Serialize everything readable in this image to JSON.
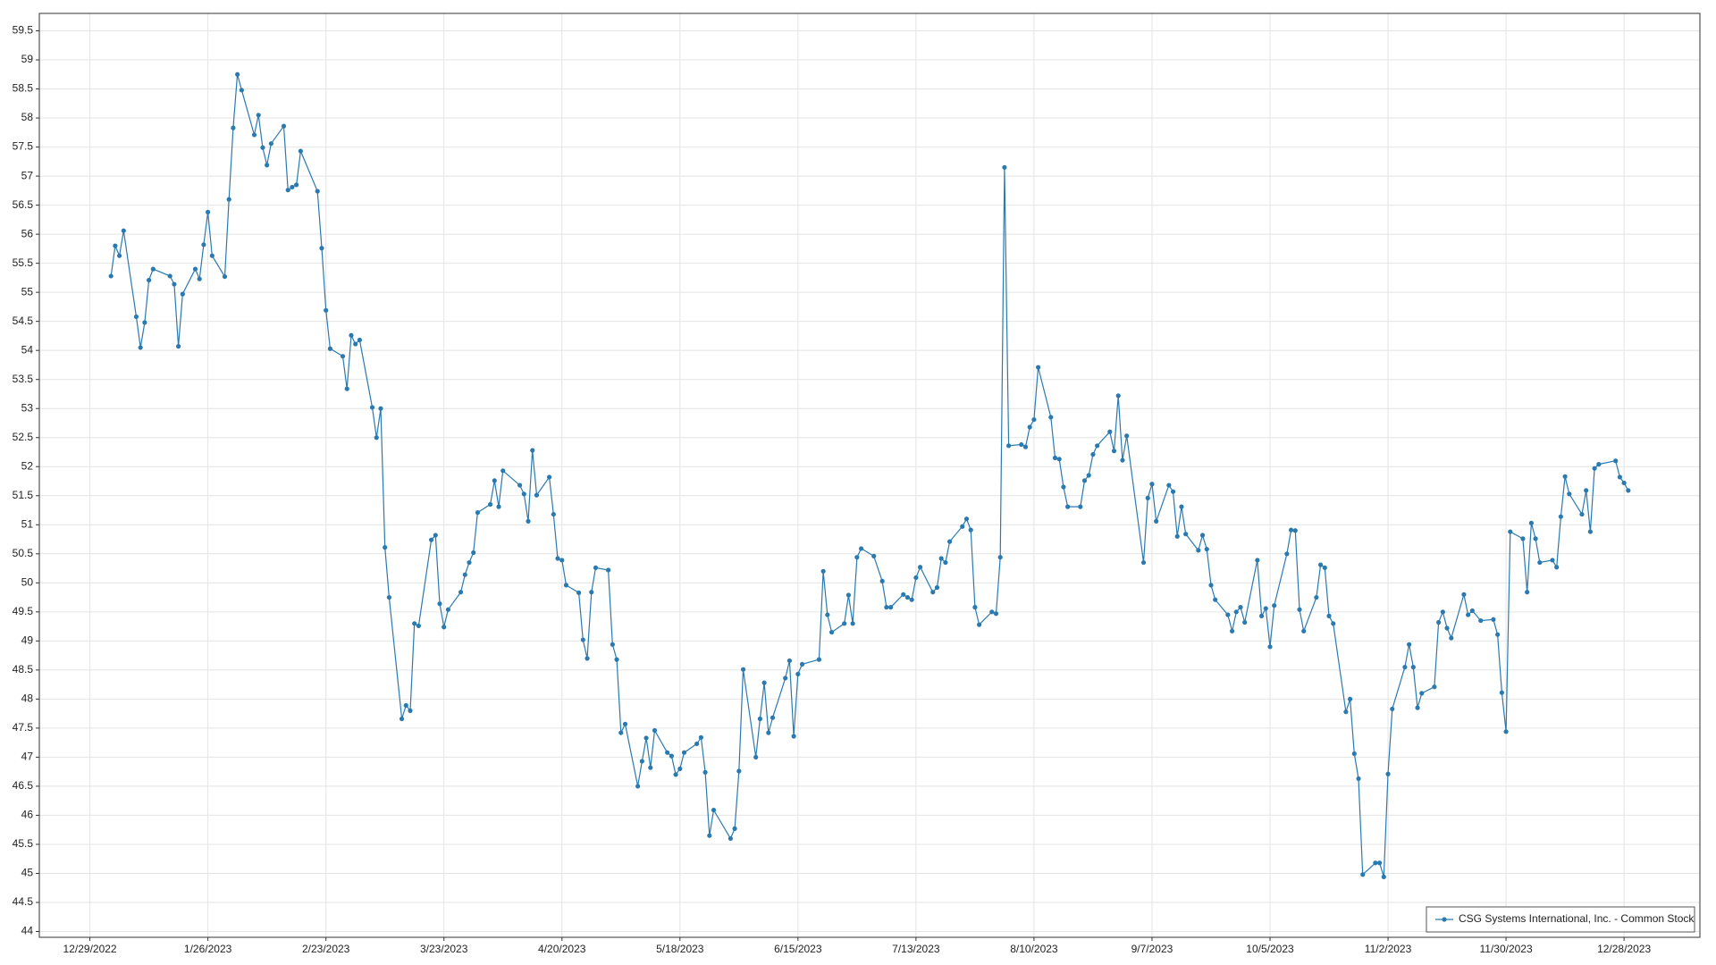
{
  "chart_data": {
    "type": "line",
    "x": [
      "1/3/2023",
      "1/4/2023",
      "1/5/2023",
      "1/6/2023",
      "1/9/2023",
      "1/10/2023",
      "1/11/2023",
      "1/12/2023",
      "1/13/2023",
      "1/17/2023",
      "1/18/2023",
      "1/19/2023",
      "1/20/2023",
      "1/23/2023",
      "1/24/2023",
      "1/25/2023",
      "1/26/2023",
      "1/27/2023",
      "1/30/2023",
      "1/31/2023",
      "2/1/2023",
      "2/2/2023",
      "2/3/2023",
      "2/6/2023",
      "2/7/2023",
      "2/8/2023",
      "2/9/2023",
      "2/10/2023",
      "2/13/2023",
      "2/14/2023",
      "2/15/2023",
      "2/16/2023",
      "2/17/2023",
      "2/21/2023",
      "2/22/2023",
      "2/23/2023",
      "2/24/2023",
      "2/27/2023",
      "2/28/2023",
      "3/1/2023",
      "3/2/2023",
      "3/3/2023",
      "3/6/2023",
      "3/7/2023",
      "3/8/2023",
      "3/9/2023",
      "3/10/2023",
      "3/13/2023",
      "3/14/2023",
      "3/15/2023",
      "3/16/2023",
      "3/17/2023",
      "3/20/2023",
      "3/21/2023",
      "3/22/2023",
      "3/23/2023",
      "3/24/2023",
      "3/27/2023",
      "3/28/2023",
      "3/29/2023",
      "3/30/2023",
      "3/31/2023",
      "4/3/2023",
      "4/4/2023",
      "4/5/2023",
      "4/6/2023",
      "4/10/2023",
      "4/11/2023",
      "4/12/2023",
      "4/13/2023",
      "4/14/2023",
      "4/17/2023",
      "4/18/2023",
      "4/19/2023",
      "4/20/2023",
      "4/21/2023",
      "4/24/2023",
      "4/25/2023",
      "4/26/2023",
      "4/27/2023",
      "4/28/2023",
      "5/1/2023",
      "5/2/2023",
      "5/3/2023",
      "5/4/2023",
      "5/5/2023",
      "5/8/2023",
      "5/9/2023",
      "5/10/2023",
      "5/11/2023",
      "5/12/2023",
      "5/15/2023",
      "5/16/2023",
      "5/17/2023",
      "5/18/2023",
      "5/19/2023",
      "5/22/2023",
      "5/23/2023",
      "5/24/2023",
      "5/25/2023",
      "5/26/2023",
      "5/30/2023",
      "5/31/2023",
      "6/1/2023",
      "6/2/2023",
      "6/5/2023",
      "6/6/2023",
      "6/7/2023",
      "6/8/2023",
      "6/9/2023",
      "6/12/2023",
      "6/13/2023",
      "6/14/2023",
      "6/15/2023",
      "6/16/2023",
      "6/20/2023",
      "6/21/2023",
      "6/22/2023",
      "6/23/2023",
      "6/26/2023",
      "6/27/2023",
      "6/28/2023",
      "6/29/2023",
      "6/30/2023",
      "7/3/2023",
      "7/5/2023",
      "7/6/2023",
      "7/7/2023",
      "7/10/2023",
      "7/11/2023",
      "7/12/2023",
      "7/13/2023",
      "7/14/2023",
      "7/17/2023",
      "7/18/2023",
      "7/19/2023",
      "7/20/2023",
      "7/21/2023",
      "7/24/2023",
      "7/25/2023",
      "7/26/2023",
      "7/27/2023",
      "7/28/2023",
      "7/31/2023",
      "8/1/2023",
      "8/2/2023",
      "8/3/2023",
      "8/4/2023",
      "8/7/2023",
      "8/8/2023",
      "8/9/2023",
      "8/10/2023",
      "8/11/2023",
      "8/14/2023",
      "8/15/2023",
      "8/16/2023",
      "8/17/2023",
      "8/18/2023",
      "8/21/2023",
      "8/22/2023",
      "8/23/2023",
      "8/24/2023",
      "8/25/2023",
      "8/28/2023",
      "8/29/2023",
      "8/30/2023",
      "8/31/2023",
      "9/1/2023",
      "9/5/2023",
      "9/6/2023",
      "9/7/2023",
      "9/8/2023",
      "9/11/2023",
      "9/12/2023",
      "9/13/2023",
      "9/14/2023",
      "9/15/2023",
      "9/18/2023",
      "9/19/2023",
      "9/20/2023",
      "9/21/2023",
      "9/22/2023",
      "9/25/2023",
      "9/26/2023",
      "9/27/2023",
      "9/28/2023",
      "9/29/2023",
      "10/2/2023",
      "10/3/2023",
      "10/4/2023",
      "10/5/2023",
      "10/6/2023",
      "10/9/2023",
      "10/10/2023",
      "10/11/2023",
      "10/12/2023",
      "10/13/2023",
      "10/16/2023",
      "10/17/2023",
      "10/18/2023",
      "10/19/2023",
      "10/20/2023",
      "10/23/2023",
      "10/24/2023",
      "10/25/2023",
      "10/26/2023",
      "10/27/2023",
      "10/30/2023",
      "10/31/2023",
      "11/1/2023",
      "11/2/2023",
      "11/3/2023",
      "11/6/2023",
      "11/7/2023",
      "11/8/2023",
      "11/9/2023",
      "11/10/2023",
      "11/13/2023",
      "11/14/2023",
      "11/15/2023",
      "11/16/2023",
      "11/17/2023",
      "11/20/2023",
      "11/21/2023",
      "11/22/2023",
      "11/24/2023",
      "11/27/2023",
      "11/28/2023",
      "11/29/2023",
      "11/30/2023",
      "12/1/2023",
      "12/4/2023",
      "12/5/2023",
      "12/6/2023",
      "12/7/2023",
      "12/8/2023",
      "12/11/2023",
      "12/12/2023",
      "12/13/2023",
      "12/14/2023",
      "12/15/2023",
      "12/18/2023",
      "12/19/2023",
      "12/20/2023",
      "12/21/2023",
      "12/22/2023",
      "12/26/2023",
      "12/27/2023",
      "12/28/2023",
      "12/29/2023"
    ],
    "series": [
      {
        "name": "CSG Systems International, Inc. - Common Stock",
        "color": "#2a7ab0",
        "values": [
          55.28,
          55.8,
          55.63,
          56.06,
          54.58,
          54.05,
          54.48,
          55.21,
          55.4,
          55.28,
          55.14,
          54.07,
          54.97,
          55.4,
          55.23,
          55.82,
          56.38,
          55.63,
          55.27,
          56.6,
          57.83,
          58.75,
          58.48,
          57.71,
          58.05,
          57.49,
          57.19,
          57.56,
          57.86,
          56.76,
          56.81,
          56.85,
          57.43,
          56.74,
          55.76,
          54.69,
          54.03,
          53.9,
          53.34,
          54.26,
          54.11,
          54.18,
          53.02,
          52.5,
          53.0,
          50.61,
          49.75,
          47.66,
          47.89,
          47.8,
          49.3,
          49.26,
          50.74,
          50.82,
          49.64,
          49.24,
          49.54,
          49.84,
          50.14,
          50.35,
          50.52,
          51.21,
          51.35,
          51.76,
          51.31,
          51.93,
          51.68,
          51.53,
          51.06,
          52.28,
          51.51,
          51.82,
          51.18,
          50.42,
          50.39,
          49.96,
          49.83,
          49.02,
          48.7,
          49.84,
          50.26,
          50.22,
          48.94,
          48.68,
          47.42,
          47.57,
          46.5,
          46.93,
          47.33,
          46.82,
          47.46,
          47.08,
          47.02,
          46.7,
          46.8,
          47.08,
          47.23,
          47.34,
          46.74,
          45.65,
          46.09,
          45.6,
          45.77,
          46.76,
          48.51,
          47.0,
          47.66,
          48.28,
          47.42,
          47.68,
          48.36,
          48.66,
          47.36,
          48.43,
          48.6,
          48.68,
          50.2,
          49.45,
          49.15,
          49.3,
          49.79,
          49.3,
          50.44,
          50.59,
          50.46,
          50.03,
          49.58,
          49.58,
          49.8,
          49.75,
          49.71,
          50.09,
          50.27,
          49.84,
          49.92,
          50.42,
          50.35,
          50.71,
          50.97,
          51.1,
          50.91,
          49.58,
          49.28,
          49.5,
          49.47,
          50.44,
          57.15,
          52.36,
          52.38,
          52.34,
          52.68,
          52.81,
          53.71,
          52.85,
          52.15,
          52.13,
          51.65,
          51.31,
          51.31,
          51.76,
          51.85,
          52.21,
          52.36,
          52.6,
          52.27,
          53.22,
          52.11,
          52.53,
          50.35,
          51.46,
          51.7,
          51.06,
          51.68,
          51.57,
          50.8,
          51.31,
          50.84,
          50.56,
          50.82,
          50.58,
          49.96,
          49.71,
          49.45,
          49.17,
          49.5,
          49.58,
          49.32,
          50.39,
          49.43,
          49.56,
          48.9,
          49.61,
          50.5,
          50.91,
          50.9,
          49.54,
          49.17,
          49.75,
          50.31,
          50.26,
          49.43,
          49.3,
          47.78,
          48.0,
          47.06,
          46.63,
          44.98,
          45.18,
          45.18,
          44.94,
          46.71,
          47.83,
          48.55,
          48.94,
          48.55,
          47.85,
          48.1,
          48.21,
          49.32,
          49.5,
          49.22,
          49.05,
          49.8,
          49.45,
          49.52,
          49.35,
          49.37,
          49.11,
          48.11,
          47.44,
          50.88,
          50.76,
          49.84,
          51.03,
          50.76,
          50.35,
          50.39,
          50.27,
          51.14,
          51.83,
          51.53,
          51.18,
          51.59,
          50.88,
          51.97,
          52.04,
          52.1,
          51.82,
          51.72,
          51.59
        ]
      }
    ],
    "xlim": [
      "12/17/2022",
      "1/15/2024"
    ],
    "xticks": [
      "12/29/2022",
      "1/26/2023",
      "2/23/2023",
      "3/23/2023",
      "4/20/2023",
      "5/18/2023",
      "6/15/2023",
      "7/13/2023",
      "8/10/2023",
      "9/7/2023",
      "10/5/2023",
      "11/2/2023",
      "11/30/2023",
      "12/28/2023"
    ],
    "ylim": [
      43.9,
      59.8
    ],
    "yticks": [
      44,
      44.5,
      45,
      45.5,
      46,
      46.5,
      47,
      47.5,
      48,
      48.5,
      49,
      49.5,
      50,
      50.5,
      51,
      51.5,
      52,
      52.5,
      53,
      53.5,
      54,
      54.5,
      55,
      55.5,
      56,
      56.5,
      57,
      57.5,
      58,
      58.5,
      59,
      59.5
    ],
    "grid": true,
    "legend": "lower right"
  }
}
